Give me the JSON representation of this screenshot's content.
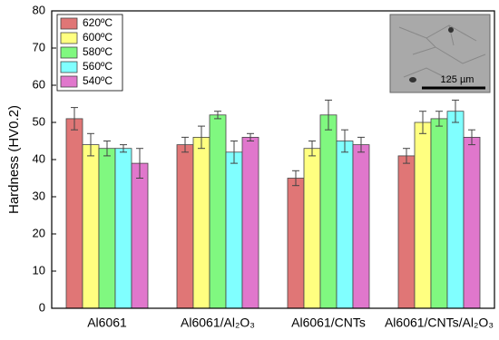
{
  "chart_data": {
    "type": "bar",
    "y_label": "Hardness (HV0.2)",
    "categories": [
      "Al6061",
      "Al6061/Al₂O₃",
      "Al6061/CNTs",
      "Al6061/CNTs/Al₂O₃"
    ],
    "series": [
      {
        "name": "620ºC",
        "color": "#e07676",
        "values": [
          51,
          44,
          35,
          41
        ],
        "errors": [
          3,
          2,
          2,
          2
        ]
      },
      {
        "name": "600ºC",
        "color": "#ffff80",
        "values": [
          44,
          46,
          43,
          50
        ],
        "errors": [
          3,
          3,
          2,
          3
        ]
      },
      {
        "name": "580ºC",
        "color": "#80f880",
        "values": [
          43,
          52,
          52,
          51
        ],
        "errors": [
          2,
          1,
          4,
          2
        ]
      },
      {
        "name": "560ºC",
        "color": "#80ffff",
        "values": [
          43,
          42,
          45,
          53
        ],
        "errors": [
          1,
          3,
          3,
          3
        ]
      },
      {
        "name": "540ºC",
        "color": "#e077cc",
        "values": [
          39,
          46,
          44,
          46
        ],
        "errors": [
          4,
          1,
          2,
          2
        ]
      }
    ],
    "ylim": [
      0,
      80
    ],
    "yticks": [
      0,
      10,
      20,
      30,
      40,
      50,
      60,
      70,
      80
    ],
    "legend": "top-left",
    "inset_scale_label": "125 µm"
  }
}
